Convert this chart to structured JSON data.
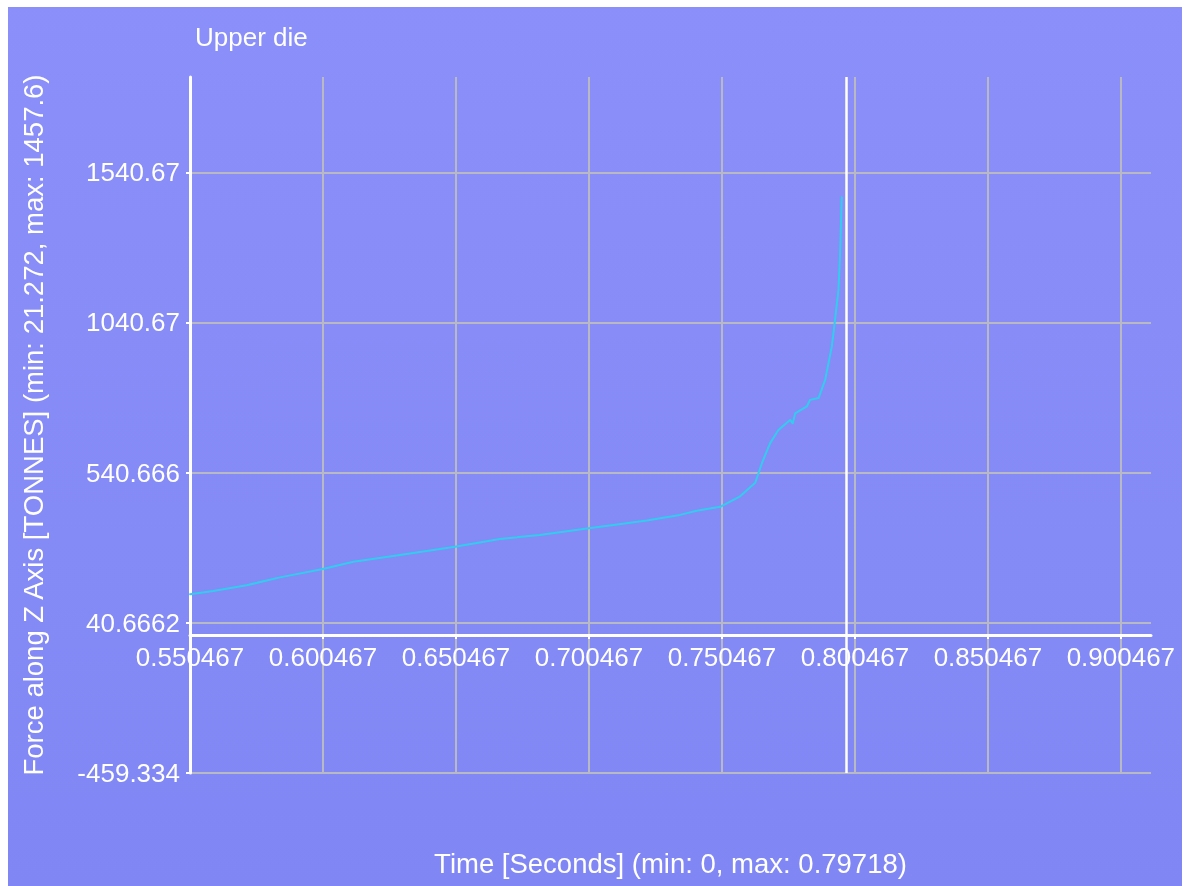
{
  "chart_data": {
    "type": "line",
    "title": "Upper die",
    "xlabel": "Time [Seconds] (min: 0, max: 0.79718)",
    "ylabel": "Force along Z Axis [TONNES] (min: 21.272, max: 1457.6)",
    "x": [
      0.5505,
      0.5592,
      0.5718,
      0.5843,
      0.6,
      0.6119,
      0.6269,
      0.642,
      0.6501,
      0.667,
      0.682,
      0.6997,
      0.7097,
      0.7222,
      0.7347,
      0.741,
      0.7498,
      0.7573,
      0.763,
      0.7655,
      0.7686,
      0.7717,
      0.7761,
      0.7771,
      0.778,
      0.7824,
      0.7836,
      0.7868,
      0.7893,
      0.7918,
      0.793,
      0.7943,
      0.7949,
      0.7955
    ],
    "values": [
      136,
      147,
      166,
      192,
      219,
      244,
      263,
      283,
      294,
      320,
      333,
      355,
      366,
      381,
      400,
      414,
      427,
      462,
      507,
      572,
      639,
      683,
      716,
      705,
      738,
      761,
      783,
      789,
      850,
      961,
      1050,
      1150,
      1272,
      1457.6
    ],
    "color": "#33ccee",
    "xlim": [
      0.550467,
      0.9118
    ],
    "ylim": [
      -459.334,
      1858
    ],
    "xticks": [
      0.550467,
      0.600467,
      0.650467,
      0.700467,
      0.750467,
      0.800467,
      0.850467,
      0.900467
    ],
    "yticks": [
      -459.334,
      40.6662,
      540.666,
      1040.67,
      1540.67
    ],
    "grid": true,
    "marker": "none",
    "line_style": "solid",
    "ref_lines": [
      {
        "axis": "x",
        "value": 0.79718,
        "color": "#ffffff"
      }
    ]
  }
}
